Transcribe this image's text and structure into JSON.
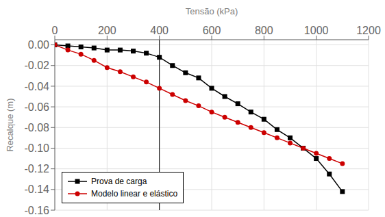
{
  "chart_data": {
    "type": "line",
    "x_label": "Tensão (kPa)",
    "y_label": "Recalque (m)",
    "x": [
      0,
      50,
      100,
      150,
      200,
      250,
      300,
      350,
      400,
      450,
      500,
      550,
      600,
      650,
      700,
      750,
      800,
      850,
      900,
      950,
      1000,
      1050,
      1100
    ],
    "series": [
      {
        "name": "Prova de carga",
        "color": "#000000",
        "marker": "square",
        "values": [
          0.0,
          -0.001,
          -0.002,
          -0.003,
          -0.005,
          -0.005,
          -0.006,
          -0.008,
          -0.012,
          -0.02,
          -0.027,
          -0.032,
          -0.042,
          -0.05,
          -0.057,
          -0.065,
          -0.072,
          -0.082,
          -0.09,
          -0.1,
          -0.11,
          -0.125,
          -0.142
        ]
      },
      {
        "name": "Modelo linear e elástico",
        "color": "#cc0000",
        "marker": "circle",
        "values": [
          0.0,
          -0.005,
          -0.009,
          -0.015,
          -0.022,
          -0.026,
          -0.031,
          -0.036,
          -0.042,
          -0.048,
          -0.054,
          -0.059,
          -0.065,
          -0.07,
          -0.075,
          -0.08,
          -0.085,
          -0.09,
          -0.095,
          -0.1,
          -0.105,
          -0.11,
          -0.115
        ]
      }
    ],
    "xlim": [
      0,
      1200
    ],
    "xticks": [
      0,
      200,
      400,
      600,
      800,
      1000,
      1200
    ],
    "ylim": [
      -0.16,
      0.005
    ],
    "yticks": [
      {
        "value": 0.0,
        "label": "0.00"
      },
      {
        "value": -0.02,
        "label": "-0.02"
      },
      {
        "value": -0.04,
        "label": "-0.04"
      },
      {
        "value": -0.06,
        "label": "-0.06"
      },
      {
        "value": -0.08,
        "label": "-0.08"
      },
      {
        "value": -0.1,
        "label": "-0.10"
      },
      {
        "value": -0.12,
        "label": "-0.12"
      },
      {
        "value": -0.14,
        "label": "-0.14"
      },
      {
        "value": -0.16,
        "label": "-0.16"
      }
    ],
    "vlines": [
      400
    ],
    "grid": true,
    "legend": "lower left"
  }
}
